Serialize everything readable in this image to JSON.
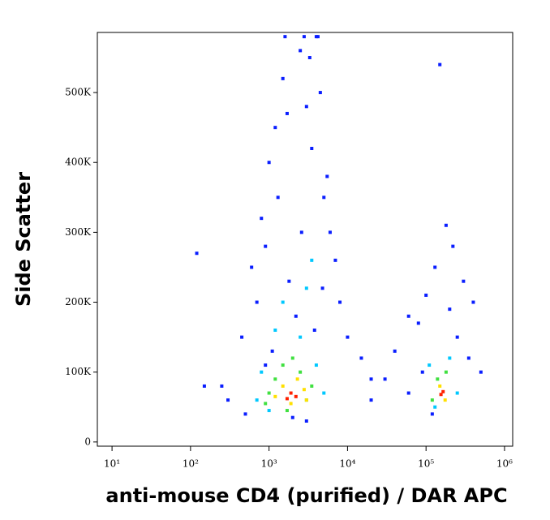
{
  "chart_data": {
    "type": "scatter",
    "xlabel": "anti-mouse CD4 (purified) / DAR APC",
    "ylabel": "Side Scatter",
    "xscale": "log",
    "xlim": [
      6.5,
      1270000
    ],
    "ylim": [
      -6000,
      586000
    ],
    "xticks": [
      {
        "value": 10,
        "label": "10¹"
      },
      {
        "value": 100,
        "label": "10²"
      },
      {
        "value": 1000,
        "label": "10³"
      },
      {
        "value": 10000,
        "label": "10⁴"
      },
      {
        "value": 100000,
        "label": "10⁵"
      },
      {
        "value": 1000000,
        "label": "10⁶"
      }
    ],
    "yticks": [
      0,
      {
        "value": 100000,
        "label": "100K"
      },
      {
        "value": 200000,
        "label": "200K"
      },
      {
        "value": 300000,
        "label": "300K"
      },
      {
        "value": 400000,
        "label": "400K"
      },
      {
        "value": 500000,
        "label": "500K"
      }
    ],
    "series": [
      {
        "color": "#0a1eff",
        "x": [
          300,
          450,
          600,
          800,
          1000,
          1200,
          1500,
          2500,
          3000,
          4000,
          5000,
          6000,
          8000,
          10000,
          15000,
          20000,
          700,
          900,
          1300,
          1800,
          2200,
          3500,
          4500,
          5500,
          7000,
          1600,
          2800,
          3300,
          4200,
          1100,
          500,
          250,
          150,
          120,
          20000,
          30000,
          40000,
          60000,
          80000,
          100000,
          130000,
          200000,
          250000,
          300000,
          400000,
          90000,
          120000,
          180000,
          350000,
          500000,
          1700,
          2600,
          3800,
          4800,
          900,
          2000,
          3000,
          60000,
          150000,
          220000
        ],
        "y": [
          60000,
          150000,
          250000,
          320000,
          400000,
          450000,
          520000,
          560000,
          480000,
          580000,
          350000,
          300000,
          200000,
          150000,
          120000,
          90000,
          200000,
          280000,
          350000,
          230000,
          180000,
          420000,
          500000,
          380000,
          260000,
          580000,
          580000,
          550000,
          580000,
          130000,
          40000,
          80000,
          80000,
          270000,
          60000,
          90000,
          130000,
          70000,
          170000,
          210000,
          250000,
          190000,
          150000,
          230000,
          200000,
          100000,
          40000,
          310000,
          120000,
          100000,
          470000,
          300000,
          160000,
          220000,
          110000,
          35000,
          30000,
          180000,
          540000,
          280000
        ]
      },
      {
        "color": "#00c8ff",
        "x": [
          800,
          1200,
          2500,
          4000,
          5000,
          1500,
          3000,
          700,
          110000,
          200000,
          250000,
          130000,
          3500,
          1000
        ],
        "y": [
          100000,
          160000,
          150000,
          110000,
          70000,
          200000,
          220000,
          60000,
          110000,
          120000,
          70000,
          50000,
          260000,
          45000
        ]
      },
      {
        "color": "#40e040",
        "x": [
          1200,
          1500,
          2500,
          3000,
          1000,
          900,
          3500,
          140000,
          180000,
          120000,
          2000,
          1700
        ],
        "y": [
          90000,
          110000,
          100000,
          60000,
          70000,
          55000,
          80000,
          90000,
          100000,
          60000,
          120000,
          45000
        ]
      },
      {
        "color": "#ffe000",
        "x": [
          1500,
          2300,
          2800,
          1900,
          150000,
          175000,
          1200,
          3000
        ],
        "y": [
          80000,
          90000,
          75000,
          55000,
          80000,
          60000,
          65000,
          60000
        ]
      },
      {
        "color": "#ff2000",
        "x": [
          1900,
          2200,
          1700,
          165000,
          155000
        ],
        "y": [
          70000,
          65000,
          62000,
          72000,
          68000
        ]
      }
    ]
  }
}
